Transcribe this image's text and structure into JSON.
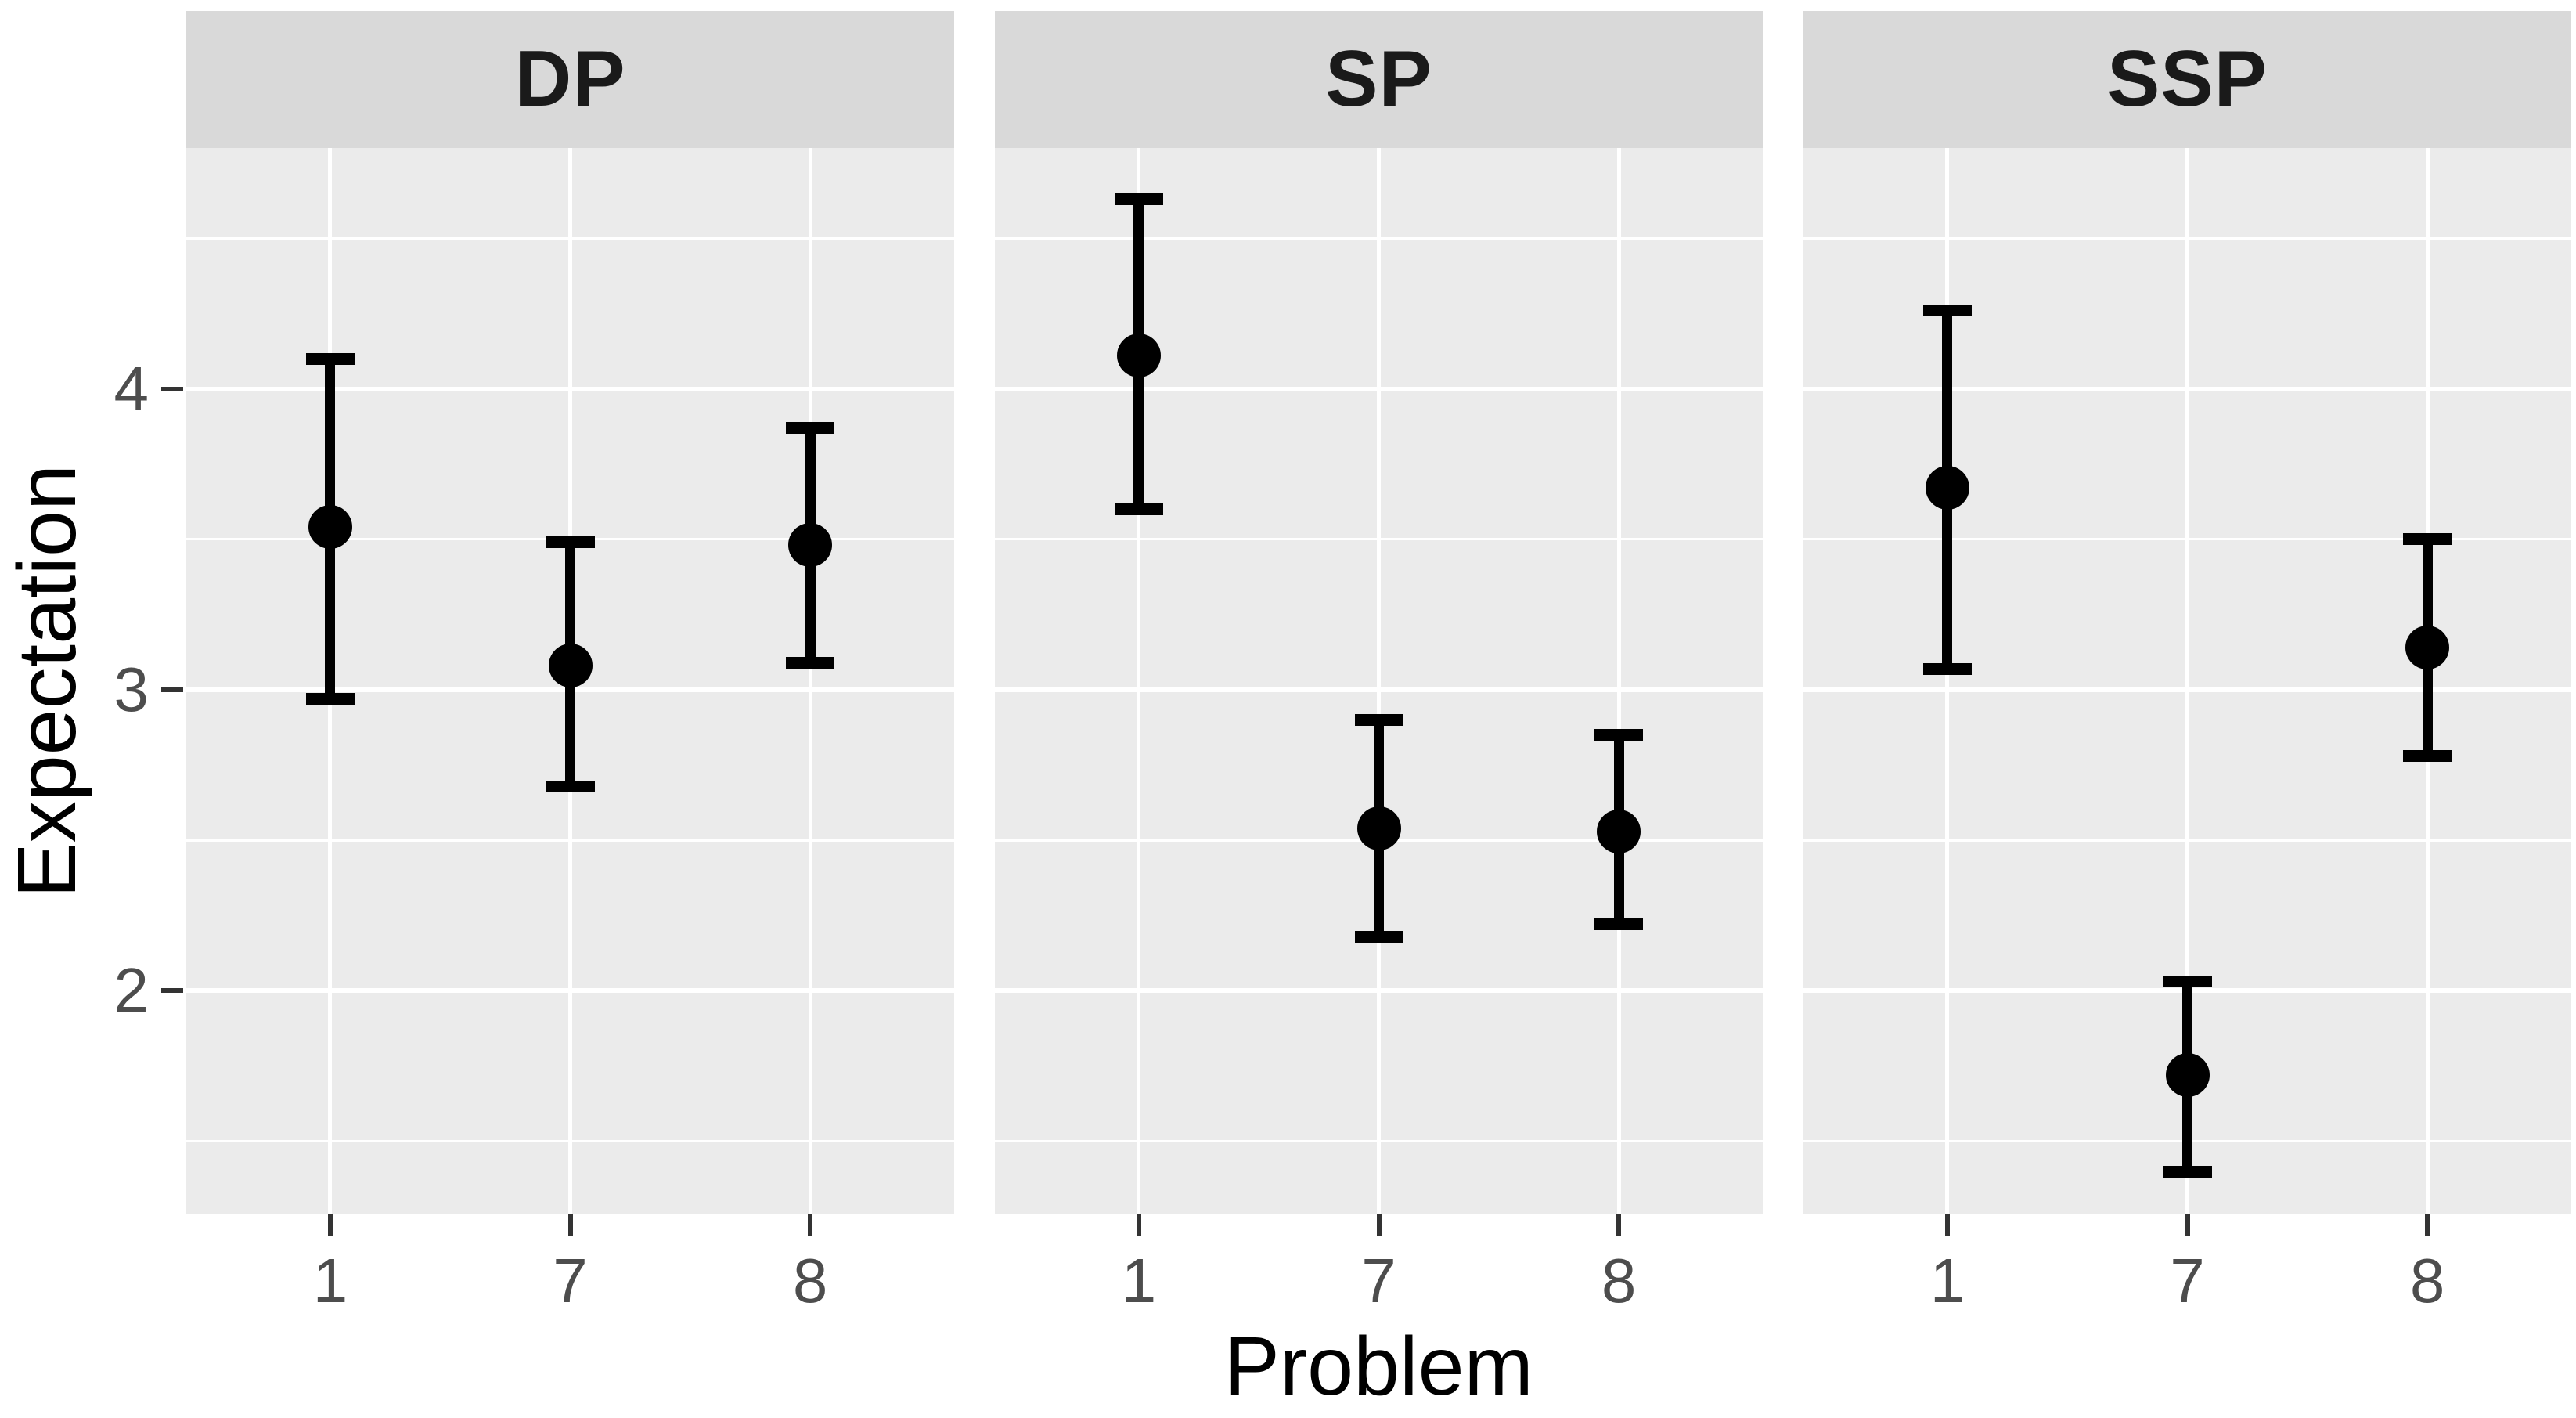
{
  "chart_data": {
    "type": "pointrange",
    "title": "",
    "facet_labels": [
      "DP",
      "SP",
      "SSP"
    ],
    "x": {
      "label": "Problem",
      "categories": [
        "1",
        "7",
        "8"
      ]
    },
    "y": {
      "label": "Expectation",
      "ticks": [
        4,
        3,
        2
      ],
      "tick_labels": [
        "4",
        "3",
        "2"
      ],
      "minor_ticks": [
        4.5,
        3.5,
        2.5,
        1.5
      ],
      "range": [
        1.26,
        4.8
      ]
    },
    "facets": [
      {
        "label": "DP",
        "points": [
          {
            "x": "1",
            "mean": 3.54,
            "lower": 2.97,
            "upper": 4.1
          },
          {
            "x": "7",
            "mean": 3.08,
            "lower": 2.68,
            "upper": 3.49
          },
          {
            "x": "8",
            "mean": 3.48,
            "lower": 3.09,
            "upper": 3.87
          }
        ]
      },
      {
        "label": "SP",
        "points": [
          {
            "x": "1",
            "mean": 4.11,
            "lower": 3.6,
            "upper": 4.63
          },
          {
            "x": "7",
            "mean": 2.54,
            "lower": 2.18,
            "upper": 2.9
          },
          {
            "x": "8",
            "mean": 2.53,
            "lower": 2.22,
            "upper": 2.85
          }
        ]
      },
      {
        "label": "SSP",
        "points": [
          {
            "x": "1",
            "mean": 3.67,
            "lower": 3.07,
            "upper": 4.26
          },
          {
            "x": "7",
            "mean": 1.72,
            "lower": 1.4,
            "upper": 2.03
          },
          {
            "x": "8",
            "mean": 3.14,
            "lower": 2.78,
            "upper": 3.5
          }
        ]
      }
    ],
    "legend": "none",
    "grid": "on",
    "colors": {
      "figure_background": "#FFFFFF",
      "panel_background": "#EBEBEB",
      "strip_background": "#D9D9D9",
      "strip_text": "#1A1A1A",
      "gridline": "#FFFFFF",
      "point": "#000000",
      "error_bar": "#000000",
      "axis_text": "#4D4D4D",
      "axis_title": "#000000",
      "tick_mark": "#333333"
    }
  }
}
